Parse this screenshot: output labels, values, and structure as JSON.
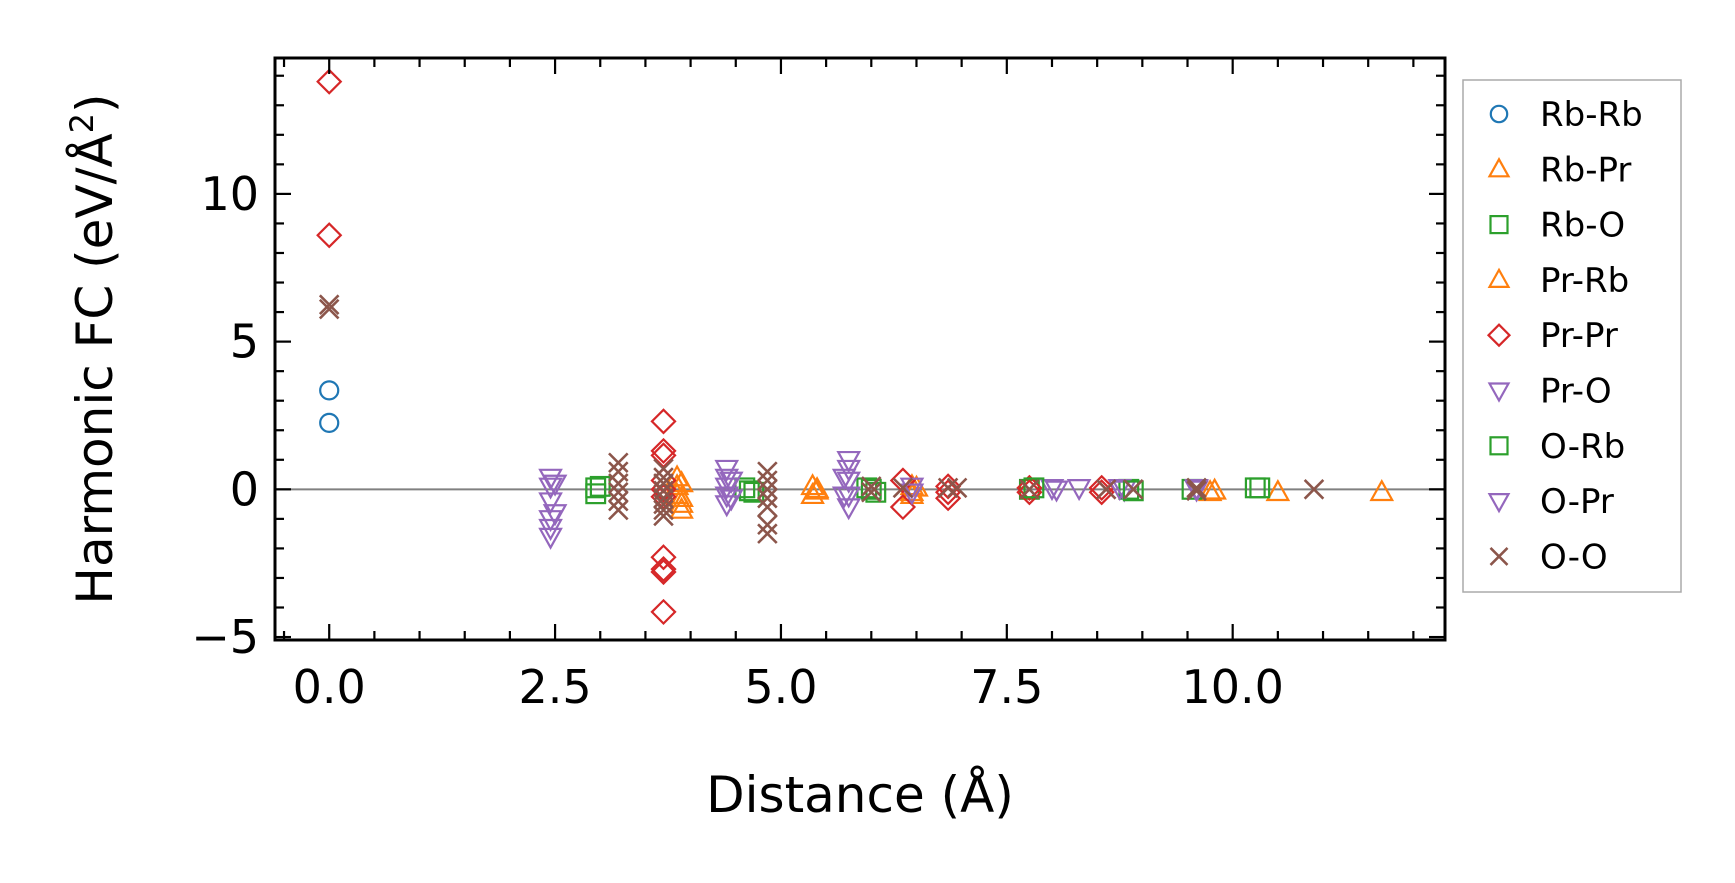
{
  "chart_data": {
    "type": "scatter",
    "title": "",
    "xlabel": "Distance (Å)",
    "ylabel": "Harmonic FC (eV/Å²)",
    "ylabel_main": "Harmonic FC (eV/Å",
    "ylabel_sup": "2",
    "ylabel_close": ")",
    "xlim": [
      -0.6,
      12.35
    ],
    "ylim": [
      -5.1,
      14.6
    ],
    "xticks": [
      0.0,
      2.5,
      5.0,
      7.5,
      10.0
    ],
    "xtick_labels": [
      "0.0",
      "2.5",
      "5.0",
      "7.5",
      "10.0"
    ],
    "yticks": [
      -5,
      0,
      5,
      10
    ],
    "ytick_labels": [
      "−5",
      "0",
      "5",
      "10"
    ],
    "grid": false,
    "zero_line": true,
    "legend_position": "outside-right",
    "series": [
      {
        "name": "Rb-Rb",
        "marker": "circle",
        "color": "#1f77b4",
        "x": [
          0.0,
          0.0
        ],
        "y": [
          3.35,
          2.25
        ]
      },
      {
        "name": "Rb-Pr",
        "marker": "triangle-up",
        "color": "#ff7f0e",
        "x": [
          3.85,
          3.85,
          3.85,
          3.9,
          3.9,
          5.35,
          5.35,
          5.4,
          6.45,
          6.45,
          6.45,
          9.75,
          10.5,
          11.65
        ],
        "y": [
          0.4,
          0.1,
          -0.2,
          -0.5,
          -0.7,
          0.1,
          -0.2,
          -0.05,
          0.1,
          -0.1,
          -0.2,
          -0.1,
          -0.1,
          -0.1
        ]
      },
      {
        "name": "Rb-O",
        "marker": "square",
        "color": "#2ca02c",
        "x": [
          2.95,
          2.95,
          4.6,
          4.7,
          5.95,
          6.05,
          7.75,
          8.85,
          9.55,
          10.25
        ],
        "y": [
          0.05,
          -0.15,
          0.05,
          -0.1,
          0.05,
          -0.1,
          0.0,
          0.0,
          0.0,
          0.05
        ]
      },
      {
        "name": "Pr-Rb",
        "marker": "triangle-up",
        "color": "#ff7f0e",
        "x": [
          3.9,
          3.9,
          5.4,
          6.5,
          9.8
        ],
        "y": [
          0.2,
          -0.3,
          0.0,
          0.05,
          -0.05
        ]
      },
      {
        "name": "Pr-Pr",
        "marker": "diamond",
        "color": "#d62728",
        "x": [
          0.0,
          0.0,
          3.7,
          3.7,
          3.7,
          3.7,
          3.7,
          3.7,
          3.7,
          3.7,
          3.7,
          3.7,
          6.35,
          6.35,
          6.85,
          6.85,
          6.85,
          7.75,
          7.75,
          8.55,
          8.55
        ],
        "y": [
          13.8,
          8.6,
          2.3,
          1.3,
          1.15,
          0.3,
          0.0,
          -0.25,
          -2.3,
          -2.7,
          -2.8,
          -4.15,
          0.3,
          -0.6,
          0.1,
          -0.1,
          -0.3,
          0.05,
          -0.1,
          0.05,
          -0.1
        ]
      },
      {
        "name": "Pr-O",
        "marker": "triangle-down",
        "color": "#9467bd",
        "x": [
          2.45,
          2.45,
          2.45,
          2.45,
          2.45,
          2.45,
          4.4,
          4.4,
          4.4,
          4.4,
          4.4,
          5.75,
          5.75,
          5.75,
          5.75,
          5.75,
          6.45,
          6.45,
          8.0,
          8.3,
          8.75,
          8.8,
          9.6
        ],
        "y": [
          0.4,
          0.1,
          -0.4,
          -1.0,
          -1.3,
          -1.6,
          0.7,
          0.4,
          0.1,
          -0.2,
          -0.5,
          1.0,
          0.7,
          0.3,
          -0.2,
          -0.6,
          0.1,
          -0.1,
          0.05,
          0.05,
          0.05,
          0.0,
          0.05
        ]
      },
      {
        "name": "O-Rb",
        "marker": "square",
        "color": "#2ca02c",
        "x": [
          3.0,
          4.65,
          6.0,
          7.8,
          8.9,
          10.3
        ],
        "y": [
          0.1,
          -0.05,
          0.0,
          0.05,
          -0.05,
          0.05
        ]
      },
      {
        "name": "O-Pr",
        "marker": "triangle-down",
        "color": "#9467bd",
        "x": [
          2.5,
          2.5,
          4.45,
          4.45,
          5.7,
          5.7,
          8.05,
          9.6
        ],
        "y": [
          0.2,
          -0.8,
          0.3,
          -0.3,
          0.4,
          -0.2,
          0.0,
          0.0
        ]
      },
      {
        "name": "O-O",
        "marker": "x",
        "color": "#8c564b",
        "x": [
          0.0,
          0.0,
          3.2,
          3.2,
          3.2,
          3.2,
          3.2,
          3.2,
          3.7,
          3.7,
          3.7,
          3.7,
          3.7,
          3.7,
          3.7,
          3.7,
          4.85,
          4.85,
          4.85,
          4.85,
          4.85,
          4.85,
          4.85,
          6.0,
          6.0,
          6.35,
          6.85,
          6.95,
          7.75,
          8.6,
          8.9,
          9.6,
          9.6,
          10.9
        ],
        "y": [
          6.25,
          6.1,
          0.9,
          0.6,
          0.2,
          -0.1,
          -0.4,
          -0.7,
          0.7,
          0.4,
          0.2,
          -0.05,
          -0.3,
          -0.5,
          -0.7,
          -0.9,
          0.6,
          0.3,
          0.0,
          -0.3,
          -0.6,
          -1.2,
          -1.5,
          0.1,
          -0.1,
          0.05,
          0.05,
          0.05,
          0.0,
          0.0,
          0.0,
          0.05,
          -0.05,
          0.0
        ]
      }
    ]
  }
}
